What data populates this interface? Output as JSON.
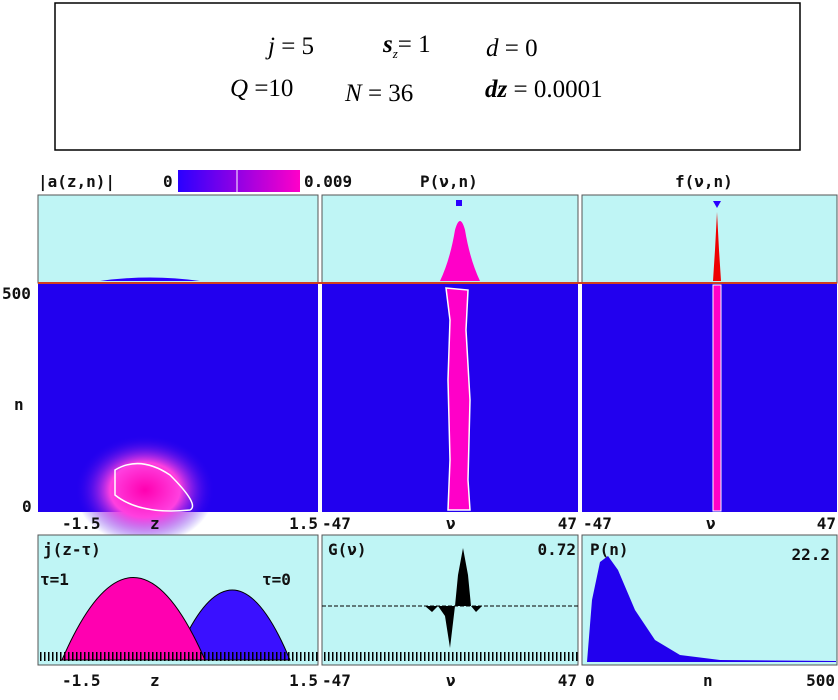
{
  "header": {
    "params": [
      {
        "name": "j",
        "value": "= 5"
      },
      {
        "name": "s",
        "sub": "z",
        "value": "= 1"
      },
      {
        "name": "d",
        "value": "= 0"
      },
      {
        "name": "Q",
        "value": "=10"
      },
      {
        "name": "N",
        "value": "= 36"
      },
      {
        "name": "dz",
        "value": "= 0.0001"
      }
    ]
  },
  "colorbar": {
    "label": "|a(z,n)|",
    "min": "0",
    "max": "0.009"
  },
  "panels": {
    "top_titles": [
      "P(ν,n)",
      "f(ν,n)"
    ],
    "y_axis": [
      "500",
      "n",
      "0"
    ],
    "x_axes": [
      [
        "-1.5",
        "z",
        "1.5"
      ],
      [
        "-47",
        "ν",
        "47"
      ],
      [
        "-47",
        "ν",
        "47"
      ]
    ],
    "bottom": [
      {
        "title": "j(z-τ)",
        "notes": [
          "τ=1",
          "τ=0"
        ],
        "axis": [
          "-1.5",
          "z",
          "1.5"
        ]
      },
      {
        "title": "G(ν)",
        "notes": [
          "0.72"
        ],
        "axis": [
          "-47",
          "ν",
          "47"
        ]
      },
      {
        "title": "P(n)",
        "notes": [
          "22.2"
        ],
        "axis": [
          "0",
          "n",
          "500"
        ]
      }
    ]
  }
}
